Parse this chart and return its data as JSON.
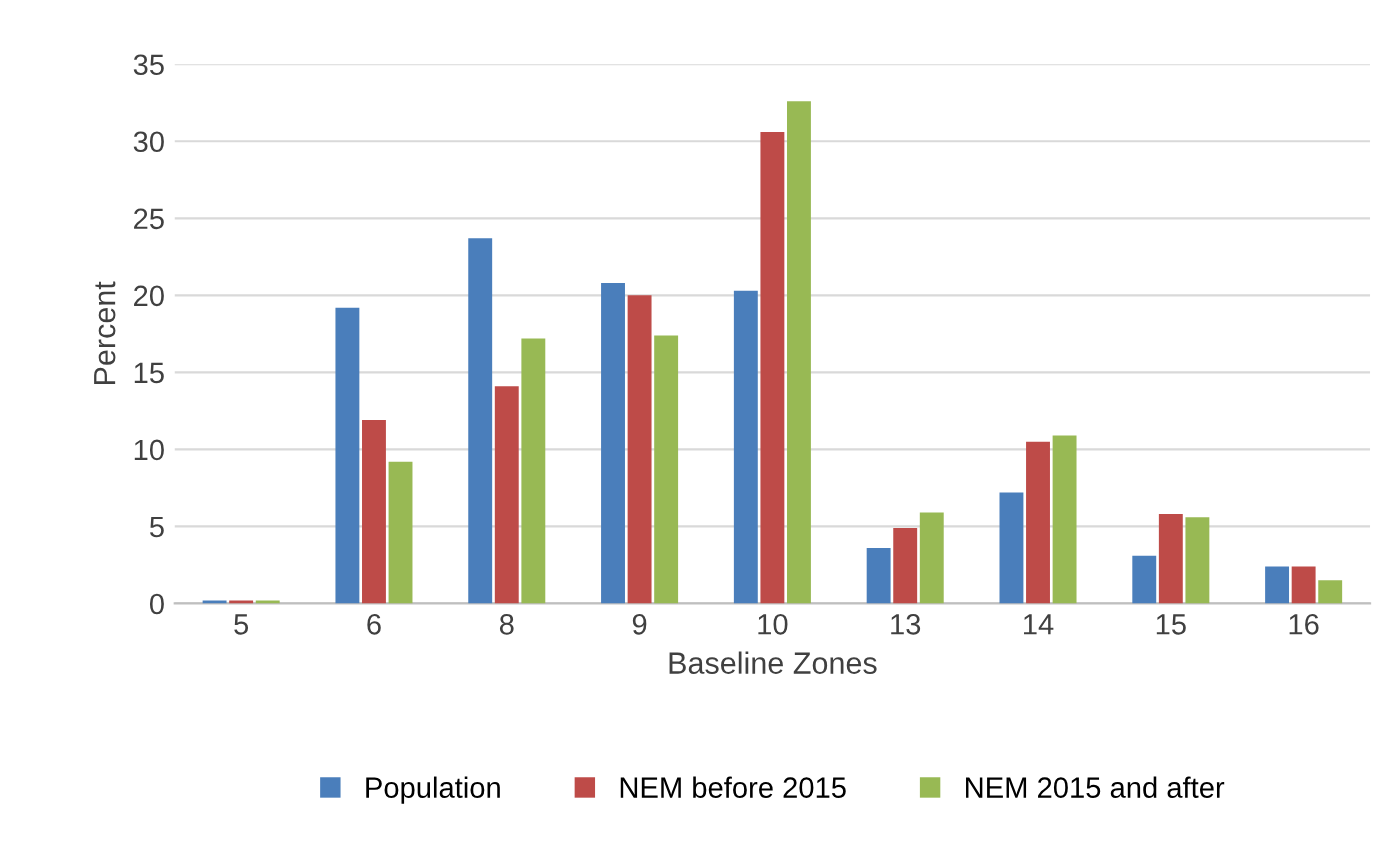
{
  "chart_data": {
    "type": "bar",
    "xlabel": "Baseline Zones",
    "ylabel": "Percent",
    "categories": [
      "5",
      "6",
      "8",
      "9",
      "10",
      "13",
      "14",
      "15",
      "16"
    ],
    "series": [
      {
        "name": "Population",
        "color": "#4a7ebb",
        "values": [
          0.2,
          19.2,
          23.7,
          20.8,
          20.3,
          3.6,
          7.2,
          3.1,
          2.4
        ]
      },
      {
        "name": "NEM before 2015",
        "color": "#be4b48",
        "values": [
          0.2,
          11.9,
          14.1,
          20.0,
          30.6,
          4.9,
          10.5,
          5.8,
          2.4
        ]
      },
      {
        "name": "NEM 2015 and after",
        "color": "#98b954",
        "values": [
          0.2,
          9.2,
          17.2,
          17.4,
          32.6,
          5.9,
          10.9,
          5.6,
          1.5
        ]
      }
    ],
    "ylim": [
      0,
      35
    ],
    "yticks": [
      0,
      5,
      10,
      15,
      20,
      25,
      30,
      35
    ],
    "grid": "y",
    "legend": "bottom"
  }
}
